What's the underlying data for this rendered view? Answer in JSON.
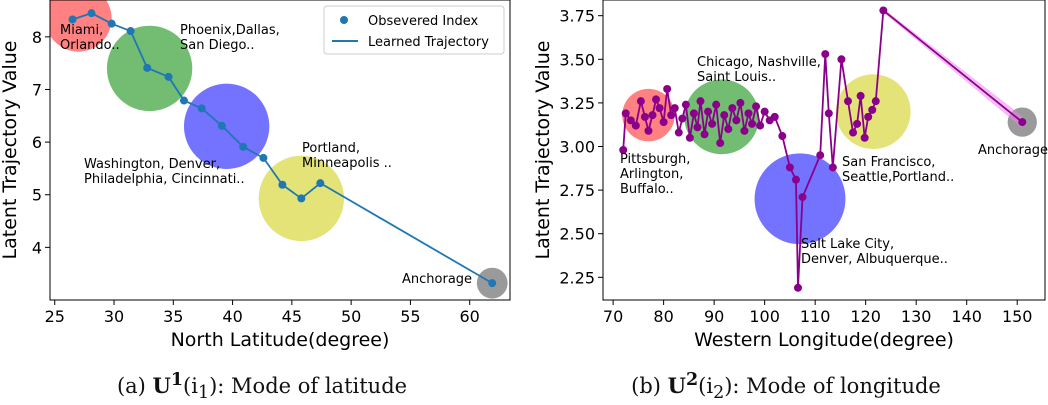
{
  "charts": [
    {
      "type": "line",
      "xlabel": "North Latitude(degree)",
      "ylabel": "Latent Trajectory Value",
      "xlim": [
        24.6,
        63.4
      ],
      "ylim": [
        3.0,
        8.7
      ],
      "xticks": [
        25,
        30,
        35,
        40,
        45,
        50,
        55,
        60
      ],
      "yticks": [
        4,
        5,
        6,
        7,
        8
      ],
      "legend": {
        "position": "top-right",
        "marker_label": "Obsevered Index",
        "line_label": "Learned Trajectory"
      },
      "line_color": "#1f77b4",
      "x": [
        26.5,
        28.1,
        29.8,
        31.4,
        32.8,
        34.6,
        35.9,
        37.4,
        39.1,
        40.9,
        42.6,
        44.2,
        45.8,
        47.4,
        61.9
      ],
      "y": [
        8.33,
        8.45,
        8.25,
        8.11,
        7.41,
        7.24,
        6.79,
        6.64,
        6.31,
        5.91,
        5.7,
        5.19,
        4.93,
        5.22,
        3.32
      ],
      "clusters": [
        {
          "cx": 27.0,
          "cy": 8.35,
          "r": 2.8,
          "color": "#ff6b6b",
          "label": "Miami,\nOrlando.."
        },
        {
          "cx": 33.0,
          "cy": 7.4,
          "r": 3.6,
          "color": "#59b259",
          "label": "Phoenix,Dallas,\nSan Diego.."
        },
        {
          "cx": 39.5,
          "cy": 6.3,
          "r": 3.6,
          "color": "#5a5aff",
          "label": "Washington, Denver,\nPhiladelphia, Cincinnati.."
        },
        {
          "cx": 45.8,
          "cy": 4.93,
          "r": 3.6,
          "color": "#dede60",
          "label": "Portland,\nMinneapolis .."
        },
        {
          "cx": 61.9,
          "cy": 3.32,
          "r": 1.3,
          "color": "#888888",
          "label": "Anchorage"
        }
      ]
    },
    {
      "type": "line",
      "xlabel": "Western Longitude(degree)",
      "ylabel": "Latent Trajectory Value",
      "xlim": [
        68.0,
        155.5
      ],
      "ylim": [
        2.12,
        3.84
      ],
      "xticks": [
        70,
        80,
        90,
        100,
        110,
        120,
        130,
        140,
        150
      ],
      "yticks": [
        2.25,
        2.5,
        2.75,
        3.0,
        3.25,
        3.5,
        3.75
      ],
      "line_color": "#8b008b",
      "band_color": "#ee82ee",
      "x": [
        72.0,
        72.5,
        73.5,
        74.5,
        75.5,
        76.3,
        77.0,
        77.8,
        78.5,
        79.2,
        80.0,
        80.7,
        81.5,
        82.2,
        83.0,
        83.7,
        84.4,
        85.2,
        86.0,
        86.7,
        87.3,
        88.1,
        88.8,
        89.6,
        90.4,
        91.2,
        92.0,
        92.8,
        93.6,
        94.4,
        95.2,
        96.0,
        96.8,
        97.5,
        98.3,
        99.1,
        100.0,
        101.0,
        102.0,
        103.5,
        105.0,
        106.2,
        106.6,
        107.5,
        111.0,
        112.0,
        112.7,
        113.5,
        115.2,
        116.5,
        117.5,
        118.3,
        119.0,
        119.8,
        120.5,
        121.3,
        122.0,
        123.5,
        151.0
      ],
      "y": [
        2.98,
        3.19,
        3.15,
        3.12,
        3.26,
        3.17,
        3.09,
        3.18,
        3.27,
        3.22,
        3.14,
        3.33,
        3.18,
        3.22,
        3.08,
        3.16,
        3.24,
        3.05,
        3.19,
        3.11,
        3.26,
        3.07,
        3.2,
        3.13,
        3.24,
        3.02,
        3.18,
        3.1,
        3.22,
        3.15,
        3.25,
        3.09,
        3.19,
        3.13,
        3.23,
        3.12,
        3.2,
        3.15,
        3.17,
        3.06,
        2.88,
        2.81,
        2.19,
        2.71,
        2.95,
        3.53,
        3.19,
        2.88,
        3.5,
        3.26,
        3.08,
        3.13,
        3.29,
        3.05,
        3.17,
        3.21,
        3.26,
        3.78,
        3.14
      ],
      "clusters": [
        {
          "cx": 77.0,
          "cy": 3.18,
          "r": 5.2,
          "color": "#ff6b6b",
          "label": "Pittsburgh,\nArlington,\nBuffalo.."
        },
        {
          "cx": 91.5,
          "cy": 3.17,
          "r": 7.4,
          "color": "#59b259",
          "label": "Chicago, Nashville,\nSaint Louis.."
        },
        {
          "cx": 107.0,
          "cy": 2.7,
          "r": 9.0,
          "color": "#5a5aff",
          "label": "Salt Lake City,\nDenver, Albuquerque.."
        },
        {
          "cx": 121.5,
          "cy": 3.2,
          "r": 7.4,
          "color": "#dede60",
          "label": "San Francisco,\nSeattle,Portland.."
        },
        {
          "cx": 151.0,
          "cy": 3.14,
          "r": 2.9,
          "color": "#888888",
          "label": "Anchorage"
        }
      ]
    }
  ],
  "captions": {
    "a_prefix": "(a) ",
    "a_bold": "U",
    "a_sup": "1",
    "a_arg": "(i",
    "a_sub": "1",
    "a_rest": "): Mode of latitude",
    "b_prefix": "(b) ",
    "b_bold": "U",
    "b_sup": "2",
    "b_arg": "(i",
    "b_sub": "2",
    "b_rest": "): Mode of longitude"
  }
}
